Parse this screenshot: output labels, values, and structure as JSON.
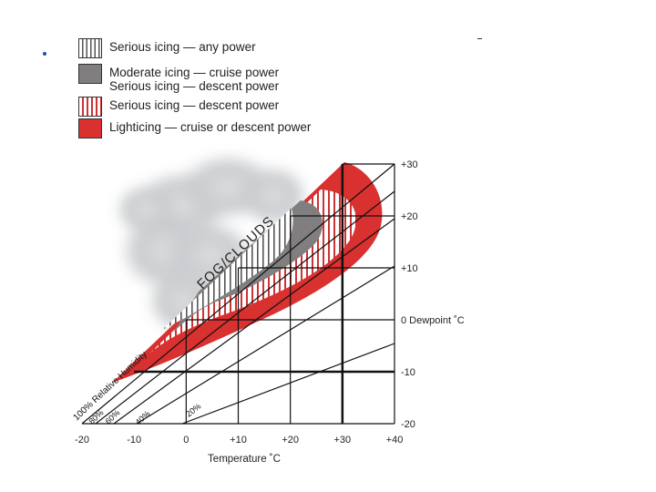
{
  "chart_data": {
    "type": "area",
    "legend": [
      {
        "label": "Serious icing — any power",
        "pattern": "hatch-gray"
      },
      {
        "label": "Moderate icing — cruise power",
        "label2": "Serious icing — descent power",
        "pattern": "solid-gray"
      },
      {
        "label": "Serious icing — descent power",
        "pattern": "hatch-red"
      },
      {
        "label": "Lighticing — cruise or descent power",
        "pattern": "solid-red"
      }
    ],
    "xlabel": "Temperature ˚C",
    "ylabel": "0 Dewpoint ˚C",
    "x_ticks": [
      "-20",
      "-10",
      "0",
      "+10",
      "+20",
      "+30",
      "+40"
    ],
    "y_ticks": [
      {
        "value": 30,
        "label": "+30"
      },
      {
        "value": 20,
        "label": "+20"
      },
      {
        "value": 10,
        "label": "+10"
      },
      {
        "value": 0,
        "label": "0 Dewpoint ˚C"
      },
      {
        "value": -10,
        "label": "-10"
      },
      {
        "value": -20,
        "label": "-20"
      }
    ],
    "xlim": [
      -20,
      40
    ],
    "ylim": [
      -20,
      30
    ],
    "rh_lines": [
      {
        "label": "100% Relative Humidity",
        "rh": 100
      },
      {
        "label": "80%",
        "rh": 80
      },
      {
        "label": "60%",
        "rh": 60
      },
      {
        "label": "40%",
        "rh": 40
      },
      {
        "label": "20%",
        "rh": 20
      }
    ],
    "annotation": "FOG/CLOUDS",
    "colors": {
      "light_red": "#d93030",
      "moderate_gray": "#807e7e",
      "hatch_dark": "#555555",
      "hatch_red": "#cc3333"
    }
  }
}
